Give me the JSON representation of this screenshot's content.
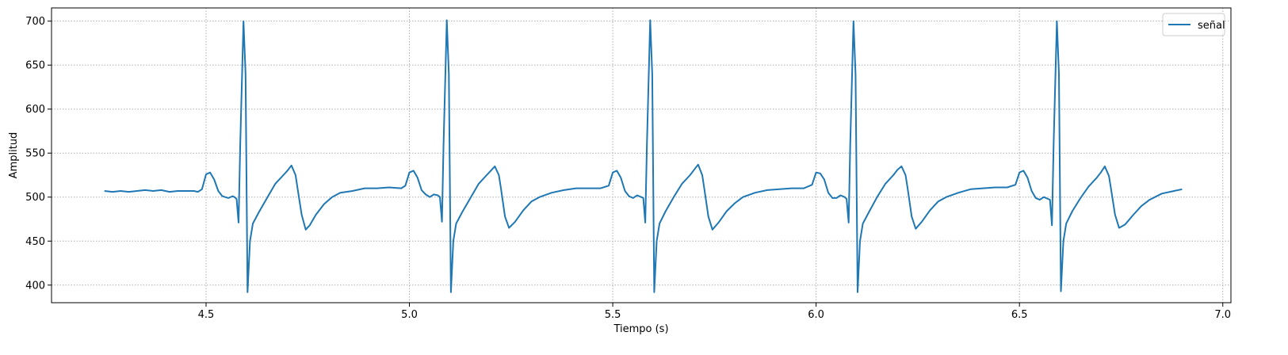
{
  "chart_data": {
    "type": "line",
    "title": "",
    "xlabel": "Tiempo (s)",
    "ylabel": "Amplitud",
    "xlim": [
      4.12,
      7.02
    ],
    "ylim": [
      380,
      715
    ],
    "xticks": [
      4.5,
      5.0,
      5.5,
      6.0,
      6.5,
      7.0
    ],
    "xtick_labels": [
      "4.5",
      "5.0",
      "5.5",
      "6.0",
      "6.5",
      "7.0"
    ],
    "yticks": [
      400,
      450,
      500,
      550,
      600,
      650,
      700
    ],
    "ytick_labels": [
      "400",
      "450",
      "500",
      "550",
      "600",
      "650",
      "700"
    ],
    "grid": true,
    "grid_style": "dotted",
    "legend": {
      "position": "top-right"
    },
    "series": [
      {
        "name": "señal",
        "color": "#1f77b4",
        "points": [
          [
            4.25,
            507
          ],
          [
            4.27,
            506
          ],
          [
            4.29,
            507
          ],
          [
            4.31,
            506
          ],
          [
            4.33,
            507
          ],
          [
            4.35,
            508
          ],
          [
            4.37,
            507
          ],
          [
            4.39,
            508
          ],
          [
            4.41,
            506
          ],
          [
            4.43,
            507
          ],
          [
            4.45,
            507
          ],
          [
            4.47,
            507
          ],
          [
            4.48,
            506
          ],
          [
            4.49,
            509
          ],
          [
            4.5,
            526
          ],
          [
            4.51,
            528
          ],
          [
            4.52,
            520
          ],
          [
            4.53,
            507
          ],
          [
            4.54,
            501
          ],
          [
            4.555,
            499
          ],
          [
            4.565,
            501
          ],
          [
            4.57,
            500
          ],
          [
            4.575,
            498
          ],
          [
            4.58,
            471
          ],
          [
            4.584,
            560
          ],
          [
            4.592,
            700
          ],
          [
            4.597,
            640
          ],
          [
            4.602,
            392
          ],
          [
            4.608,
            450
          ],
          [
            4.615,
            470
          ],
          [
            4.63,
            483
          ],
          [
            4.65,
            499
          ],
          [
            4.67,
            515
          ],
          [
            4.69,
            525
          ],
          [
            4.7,
            530
          ],
          [
            4.71,
            536
          ],
          [
            4.72,
            525
          ],
          [
            4.725,
            510
          ],
          [
            4.735,
            480
          ],
          [
            4.745,
            463
          ],
          [
            4.755,
            468
          ],
          [
            4.77,
            480
          ],
          [
            4.79,
            492
          ],
          [
            4.81,
            500
          ],
          [
            4.83,
            505
          ],
          [
            4.86,
            507
          ],
          [
            4.89,
            510
          ],
          [
            4.92,
            510
          ],
          [
            4.95,
            511
          ],
          [
            4.98,
            510
          ],
          [
            4.99,
            513
          ],
          [
            5.0,
            528
          ],
          [
            5.01,
            530
          ],
          [
            5.02,
            522
          ],
          [
            5.03,
            508
          ],
          [
            5.04,
            503
          ],
          [
            5.05,
            500
          ],
          [
            5.06,
            503
          ],
          [
            5.07,
            502
          ],
          [
            5.075,
            500
          ],
          [
            5.08,
            472
          ],
          [
            5.084,
            560
          ],
          [
            5.092,
            701
          ],
          [
            5.097,
            640
          ],
          [
            5.102,
            392
          ],
          [
            5.108,
            450
          ],
          [
            5.115,
            470
          ],
          [
            5.13,
            483
          ],
          [
            5.15,
            499
          ],
          [
            5.17,
            515
          ],
          [
            5.19,
            525
          ],
          [
            5.2,
            530
          ],
          [
            5.21,
            535
          ],
          [
            5.22,
            525
          ],
          [
            5.225,
            510
          ],
          [
            5.235,
            478
          ],
          [
            5.245,
            465
          ],
          [
            5.26,
            472
          ],
          [
            5.28,
            485
          ],
          [
            5.3,
            495
          ],
          [
            5.32,
            500
          ],
          [
            5.35,
            505
          ],
          [
            5.38,
            508
          ],
          [
            5.41,
            510
          ],
          [
            5.44,
            510
          ],
          [
            5.47,
            510
          ],
          [
            5.49,
            513
          ],
          [
            5.5,
            528
          ],
          [
            5.51,
            530
          ],
          [
            5.52,
            522
          ],
          [
            5.53,
            507
          ],
          [
            5.54,
            501
          ],
          [
            5.55,
            499
          ],
          [
            5.56,
            502
          ],
          [
            5.57,
            500
          ],
          [
            5.575,
            499
          ],
          [
            5.58,
            471
          ],
          [
            5.584,
            560
          ],
          [
            5.592,
            701
          ],
          [
            5.597,
            640
          ],
          [
            5.602,
            392
          ],
          [
            5.608,
            450
          ],
          [
            5.615,
            470
          ],
          [
            5.63,
            484
          ],
          [
            5.65,
            500
          ],
          [
            5.67,
            515
          ],
          [
            5.69,
            525
          ],
          [
            5.7,
            531
          ],
          [
            5.71,
            537
          ],
          [
            5.72,
            525
          ],
          [
            5.725,
            510
          ],
          [
            5.735,
            478
          ],
          [
            5.745,
            463
          ],
          [
            5.76,
            471
          ],
          [
            5.78,
            484
          ],
          [
            5.8,
            493
          ],
          [
            5.82,
            500
          ],
          [
            5.85,
            505
          ],
          [
            5.88,
            508
          ],
          [
            5.91,
            509
          ],
          [
            5.94,
            510
          ],
          [
            5.97,
            510
          ],
          [
            5.99,
            514
          ],
          [
            6.0,
            528
          ],
          [
            6.01,
            527
          ],
          [
            6.02,
            520
          ],
          [
            6.03,
            505
          ],
          [
            6.04,
            499
          ],
          [
            6.05,
            499
          ],
          [
            6.06,
            502
          ],
          [
            6.07,
            500
          ],
          [
            6.075,
            498
          ],
          [
            6.08,
            471
          ],
          [
            6.084,
            560
          ],
          [
            6.092,
            700
          ],
          [
            6.097,
            640
          ],
          [
            6.102,
            392
          ],
          [
            6.108,
            450
          ],
          [
            6.115,
            470
          ],
          [
            6.13,
            483
          ],
          [
            6.15,
            500
          ],
          [
            6.17,
            515
          ],
          [
            6.19,
            525
          ],
          [
            6.2,
            531
          ],
          [
            6.21,
            535
          ],
          [
            6.22,
            525
          ],
          [
            6.225,
            510
          ],
          [
            6.235,
            478
          ],
          [
            6.245,
            464
          ],
          [
            6.26,
            472
          ],
          [
            6.28,
            485
          ],
          [
            6.3,
            495
          ],
          [
            6.32,
            500
          ],
          [
            6.35,
            505
          ],
          [
            6.38,
            509
          ],
          [
            6.41,
            510
          ],
          [
            6.44,
            511
          ],
          [
            6.47,
            511
          ],
          [
            6.49,
            514
          ],
          [
            6.5,
            528
          ],
          [
            6.51,
            530
          ],
          [
            6.52,
            522
          ],
          [
            6.53,
            507
          ],
          [
            6.54,
            499
          ],
          [
            6.55,
            497
          ],
          [
            6.56,
            500
          ],
          [
            6.57,
            498
          ],
          [
            6.575,
            497
          ],
          [
            6.58,
            468
          ],
          [
            6.584,
            560
          ],
          [
            6.592,
            700
          ],
          [
            6.597,
            640
          ],
          [
            6.602,
            393
          ],
          [
            6.608,
            450
          ],
          [
            6.615,
            470
          ],
          [
            6.63,
            484
          ],
          [
            6.65,
            499
          ],
          [
            6.67,
            512
          ],
          [
            6.69,
            522
          ],
          [
            6.7,
            528
          ],
          [
            6.71,
            535
          ],
          [
            6.72,
            524
          ],
          [
            6.725,
            510
          ],
          [
            6.735,
            480
          ],
          [
            6.745,
            465
          ],
          [
            6.76,
            469
          ],
          [
            6.78,
            480
          ],
          [
            6.8,
            490
          ],
          [
            6.82,
            497
          ],
          [
            6.85,
            504
          ],
          [
            6.88,
            507
          ],
          [
            6.9,
            509
          ]
        ]
      }
    ]
  }
}
